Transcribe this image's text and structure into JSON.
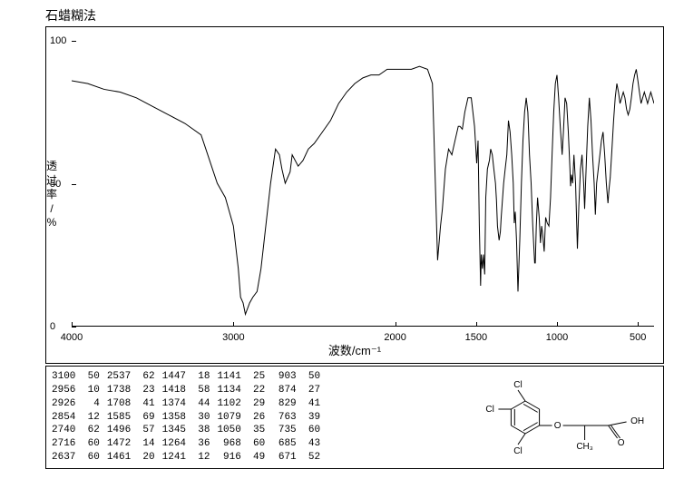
{
  "title": "石蜡糊法",
  "ylabel_lines": [
    "透",
    "过",
    "率",
    "/",
    "%"
  ],
  "xlabel": "波数/cm⁻¹",
  "chart": {
    "type": "line",
    "xlim": [
      4000,
      400
    ],
    "ylim": [
      0,
      100
    ],
    "xticks": [
      4000,
      3000,
      2000,
      1500,
      1000,
      500
    ],
    "yticks": [
      0,
      50,
      100
    ],
    "line_color": "#000000",
    "background_color": "#ffffff",
    "points": [
      [
        4000,
        86
      ],
      [
        3900,
        85
      ],
      [
        3800,
        83
      ],
      [
        3700,
        82
      ],
      [
        3600,
        80
      ],
      [
        3500,
        77
      ],
      [
        3400,
        74
      ],
      [
        3300,
        71
      ],
      [
        3200,
        67
      ],
      [
        3100,
        50
      ],
      [
        3050,
        45
      ],
      [
        3000,
        35
      ],
      [
        2970,
        20
      ],
      [
        2956,
        10
      ],
      [
        2940,
        8
      ],
      [
        2926,
        4
      ],
      [
        2900,
        8
      ],
      [
        2880,
        10
      ],
      [
        2854,
        12
      ],
      [
        2830,
        20
      ],
      [
        2800,
        35
      ],
      [
        2770,
        50
      ],
      [
        2740,
        62
      ],
      [
        2716,
        60
      ],
      [
        2700,
        55
      ],
      [
        2680,
        50
      ],
      [
        2650,
        54
      ],
      [
        2637,
        60
      ],
      [
        2600,
        56
      ],
      [
        2570,
        58
      ],
      [
        2537,
        62
      ],
      [
        2500,
        64
      ],
      [
        2450,
        68
      ],
      [
        2400,
        72
      ],
      [
        2350,
        78
      ],
      [
        2300,
        82
      ],
      [
        2250,
        85
      ],
      [
        2200,
        87
      ],
      [
        2150,
        88
      ],
      [
        2100,
        88
      ],
      [
        2050,
        90
      ],
      [
        2000,
        90
      ],
      [
        1950,
        90
      ],
      [
        1900,
        90
      ],
      [
        1850,
        91
      ],
      [
        1800,
        90
      ],
      [
        1770,
        85
      ],
      [
        1738,
        23
      ],
      [
        1720,
        35
      ],
      [
        1708,
        41
      ],
      [
        1690,
        55
      ],
      [
        1670,
        62
      ],
      [
        1650,
        60
      ],
      [
        1630,
        65
      ],
      [
        1610,
        70
      ],
      [
        1600,
        70
      ],
      [
        1585,
        69
      ],
      [
        1570,
        75
      ],
      [
        1550,
        80
      ],
      [
        1530,
        80
      ],
      [
        1510,
        70
      ],
      [
        1496,
        57
      ],
      [
        1488,
        65
      ],
      [
        1480,
        35
      ],
      [
        1472,
        14
      ],
      [
        1468,
        25
      ],
      [
        1461,
        20
      ],
      [
        1455,
        25
      ],
      [
        1447,
        18
      ],
      [
        1440,
        45
      ],
      [
        1430,
        55
      ],
      [
        1418,
        58
      ],
      [
        1410,
        62
      ],
      [
        1400,
        60
      ],
      [
        1390,
        55
      ],
      [
        1380,
        50
      ],
      [
        1374,
        44
      ],
      [
        1368,
        35
      ],
      [
        1358,
        30
      ],
      [
        1350,
        33
      ],
      [
        1345,
        38
      ],
      [
        1330,
        50
      ],
      [
        1320,
        55
      ],
      [
        1310,
        60
      ],
      [
        1300,
        72
      ],
      [
        1290,
        68
      ],
      [
        1280,
        60
      ],
      [
        1270,
        50
      ],
      [
        1264,
        36
      ],
      [
        1258,
        40
      ],
      [
        1250,
        30
      ],
      [
        1241,
        12
      ],
      [
        1230,
        30
      ],
      [
        1220,
        50
      ],
      [
        1210,
        65
      ],
      [
        1200,
        75
      ],
      [
        1190,
        80
      ],
      [
        1180,
        75
      ],
      [
        1170,
        60
      ],
      [
        1160,
        50
      ],
      [
        1150,
        35
      ],
      [
        1141,
        25
      ],
      [
        1138,
        22
      ],
      [
        1134,
        22
      ],
      [
        1128,
        35
      ],
      [
        1120,
        45
      ],
      [
        1110,
        38
      ],
      [
        1102,
        29
      ],
      [
        1095,
        35
      ],
      [
        1088,
        32
      ],
      [
        1079,
        26
      ],
      [
        1070,
        38
      ],
      [
        1060,
        36
      ],
      [
        1050,
        35
      ],
      [
        1040,
        45
      ],
      [
        1030,
        60
      ],
      [
        1020,
        75
      ],
      [
        1010,
        85
      ],
      [
        1000,
        88
      ],
      [
        990,
        80
      ],
      [
        980,
        70
      ],
      [
        968,
        60
      ],
      [
        960,
        68
      ],
      [
        950,
        80
      ],
      [
        940,
        78
      ],
      [
        930,
        68
      ],
      [
        920,
        55
      ],
      [
        916,
        49
      ],
      [
        910,
        53
      ],
      [
        903,
        50
      ],
      [
        895,
        60
      ],
      [
        885,
        50
      ],
      [
        874,
        27
      ],
      [
        865,
        42
      ],
      [
        855,
        55
      ],
      [
        845,
        60
      ],
      [
        835,
        50
      ],
      [
        829,
        41
      ],
      [
        820,
        55
      ],
      [
        810,
        70
      ],
      [
        800,
        80
      ],
      [
        790,
        72
      ],
      [
        780,
        60
      ],
      [
        770,
        50
      ],
      [
        763,
        39
      ],
      [
        755,
        50
      ],
      [
        745,
        55
      ],
      [
        735,
        60
      ],
      [
        725,
        65
      ],
      [
        715,
        68
      ],
      [
        705,
        60
      ],
      [
        695,
        50
      ],
      [
        685,
        43
      ],
      [
        678,
        48
      ],
      [
        671,
        52
      ],
      [
        660,
        62
      ],
      [
        650,
        72
      ],
      [
        640,
        80
      ],
      [
        630,
        85
      ],
      [
        620,
        82
      ],
      [
        610,
        78
      ],
      [
        600,
        80
      ],
      [
        590,
        82
      ],
      [
        580,
        80
      ],
      [
        570,
        76
      ],
      [
        560,
        74
      ],
      [
        550,
        76
      ],
      [
        540,
        80
      ],
      [
        530,
        85
      ],
      [
        520,
        88
      ],
      [
        510,
        90
      ],
      [
        500,
        86
      ],
      [
        490,
        82
      ],
      [
        480,
        78
      ],
      [
        470,
        80
      ],
      [
        460,
        82
      ],
      [
        450,
        80
      ],
      [
        440,
        78
      ],
      [
        430,
        80
      ],
      [
        420,
        82
      ],
      [
        410,
        80
      ],
      [
        400,
        78
      ]
    ]
  },
  "peak_table": {
    "columns": [
      [
        [
          "3100",
          "50"
        ],
        [
          "2956",
          "10"
        ],
        [
          "2926",
          "4"
        ],
        [
          "2854",
          "12"
        ],
        [
          "2740",
          "62"
        ],
        [
          "2716",
          "60"
        ],
        [
          "2637",
          "60"
        ]
      ],
      [
        [
          "2537",
          "62"
        ],
        [
          "1738",
          "23"
        ],
        [
          "1708",
          "41"
        ],
        [
          "1585",
          "69"
        ],
        [
          "1496",
          "57"
        ],
        [
          "1472",
          "14"
        ],
        [
          "1461",
          "20"
        ]
      ],
      [
        [
          "1447",
          "18"
        ],
        [
          "1418",
          "58"
        ],
        [
          "1374",
          "44"
        ],
        [
          "1358",
          "30"
        ],
        [
          "1345",
          "38"
        ],
        [
          "1264",
          "36"
        ],
        [
          "1241",
          "12"
        ]
      ],
      [
        [
          "1141",
          "25"
        ],
        [
          "1134",
          "22"
        ],
        [
          "1102",
          "29"
        ],
        [
          "1079",
          "26"
        ],
        [
          "1050",
          "35"
        ],
        [
          "968",
          "60"
        ],
        [
          "916",
          "49"
        ]
      ],
      [
        [
          "903",
          "50"
        ],
        [
          "874",
          "27"
        ],
        [
          "829",
          "41"
        ],
        [
          "763",
          "39"
        ],
        [
          "735",
          "60"
        ],
        [
          "685",
          "43"
        ],
        [
          "671",
          "52"
        ]
      ]
    ]
  },
  "structure": {
    "labels": {
      "Cl": "Cl",
      "O": "O",
      "OH": "OH",
      "CH3": "CH₃",
      "Odbl": "O"
    }
  }
}
